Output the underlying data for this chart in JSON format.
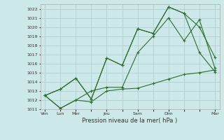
{
  "title": "",
  "xlabel": "Pression niveau de la mer( hPa )",
  "ylabel": "",
  "bg_color": "#cce8e8",
  "grid_color": "#aacccc",
  "line_color": "#2d6e2d",
  "marker_color": "#2d6e2d",
  "ylim": [
    1011,
    1022.5
  ],
  "yticks": [
    1011,
    1012,
    1013,
    1014,
    1015,
    1016,
    1017,
    1018,
    1019,
    1020,
    1021,
    1022
  ],
  "xtick_labels": [
    "Ven",
    "Lun",
    "Mer",
    "",
    "Jeu",
    "",
    "Sam",
    "",
    "Dim",
    "",
    "",
    "Mar"
  ],
  "xtick_positions": [
    0,
    1,
    2,
    3,
    4,
    5,
    6,
    7,
    8,
    9,
    10,
    11
  ],
  "series": [
    [
      1012.5,
      1011.1,
      1012.0,
      1011.8,
      1013.0,
      1013.2,
      1013.3,
      1013.8,
      1014.3,
      1014.8,
      1015.0,
      1015.3
    ],
    [
      1012.5,
      1013.2,
      1014.4,
      1012.1,
      1016.6,
      1015.8,
      1019.8,
      1019.3,
      1022.2,
      1021.5,
      1017.2,
      1015.1
    ],
    [
      1012.5,
      1011.1,
      1012.0,
      1013.0,
      1013.4,
      1013.4,
      1017.2,
      1019.0,
      1021.0,
      1018.5,
      1020.8,
      1015.5
    ],
    [
      1012.5,
      1013.2,
      1014.4,
      1012.1,
      1016.6,
      1015.8,
      1019.8,
      1019.3,
      1022.2,
      1021.5,
      1020.0,
      1016.7
    ]
  ]
}
